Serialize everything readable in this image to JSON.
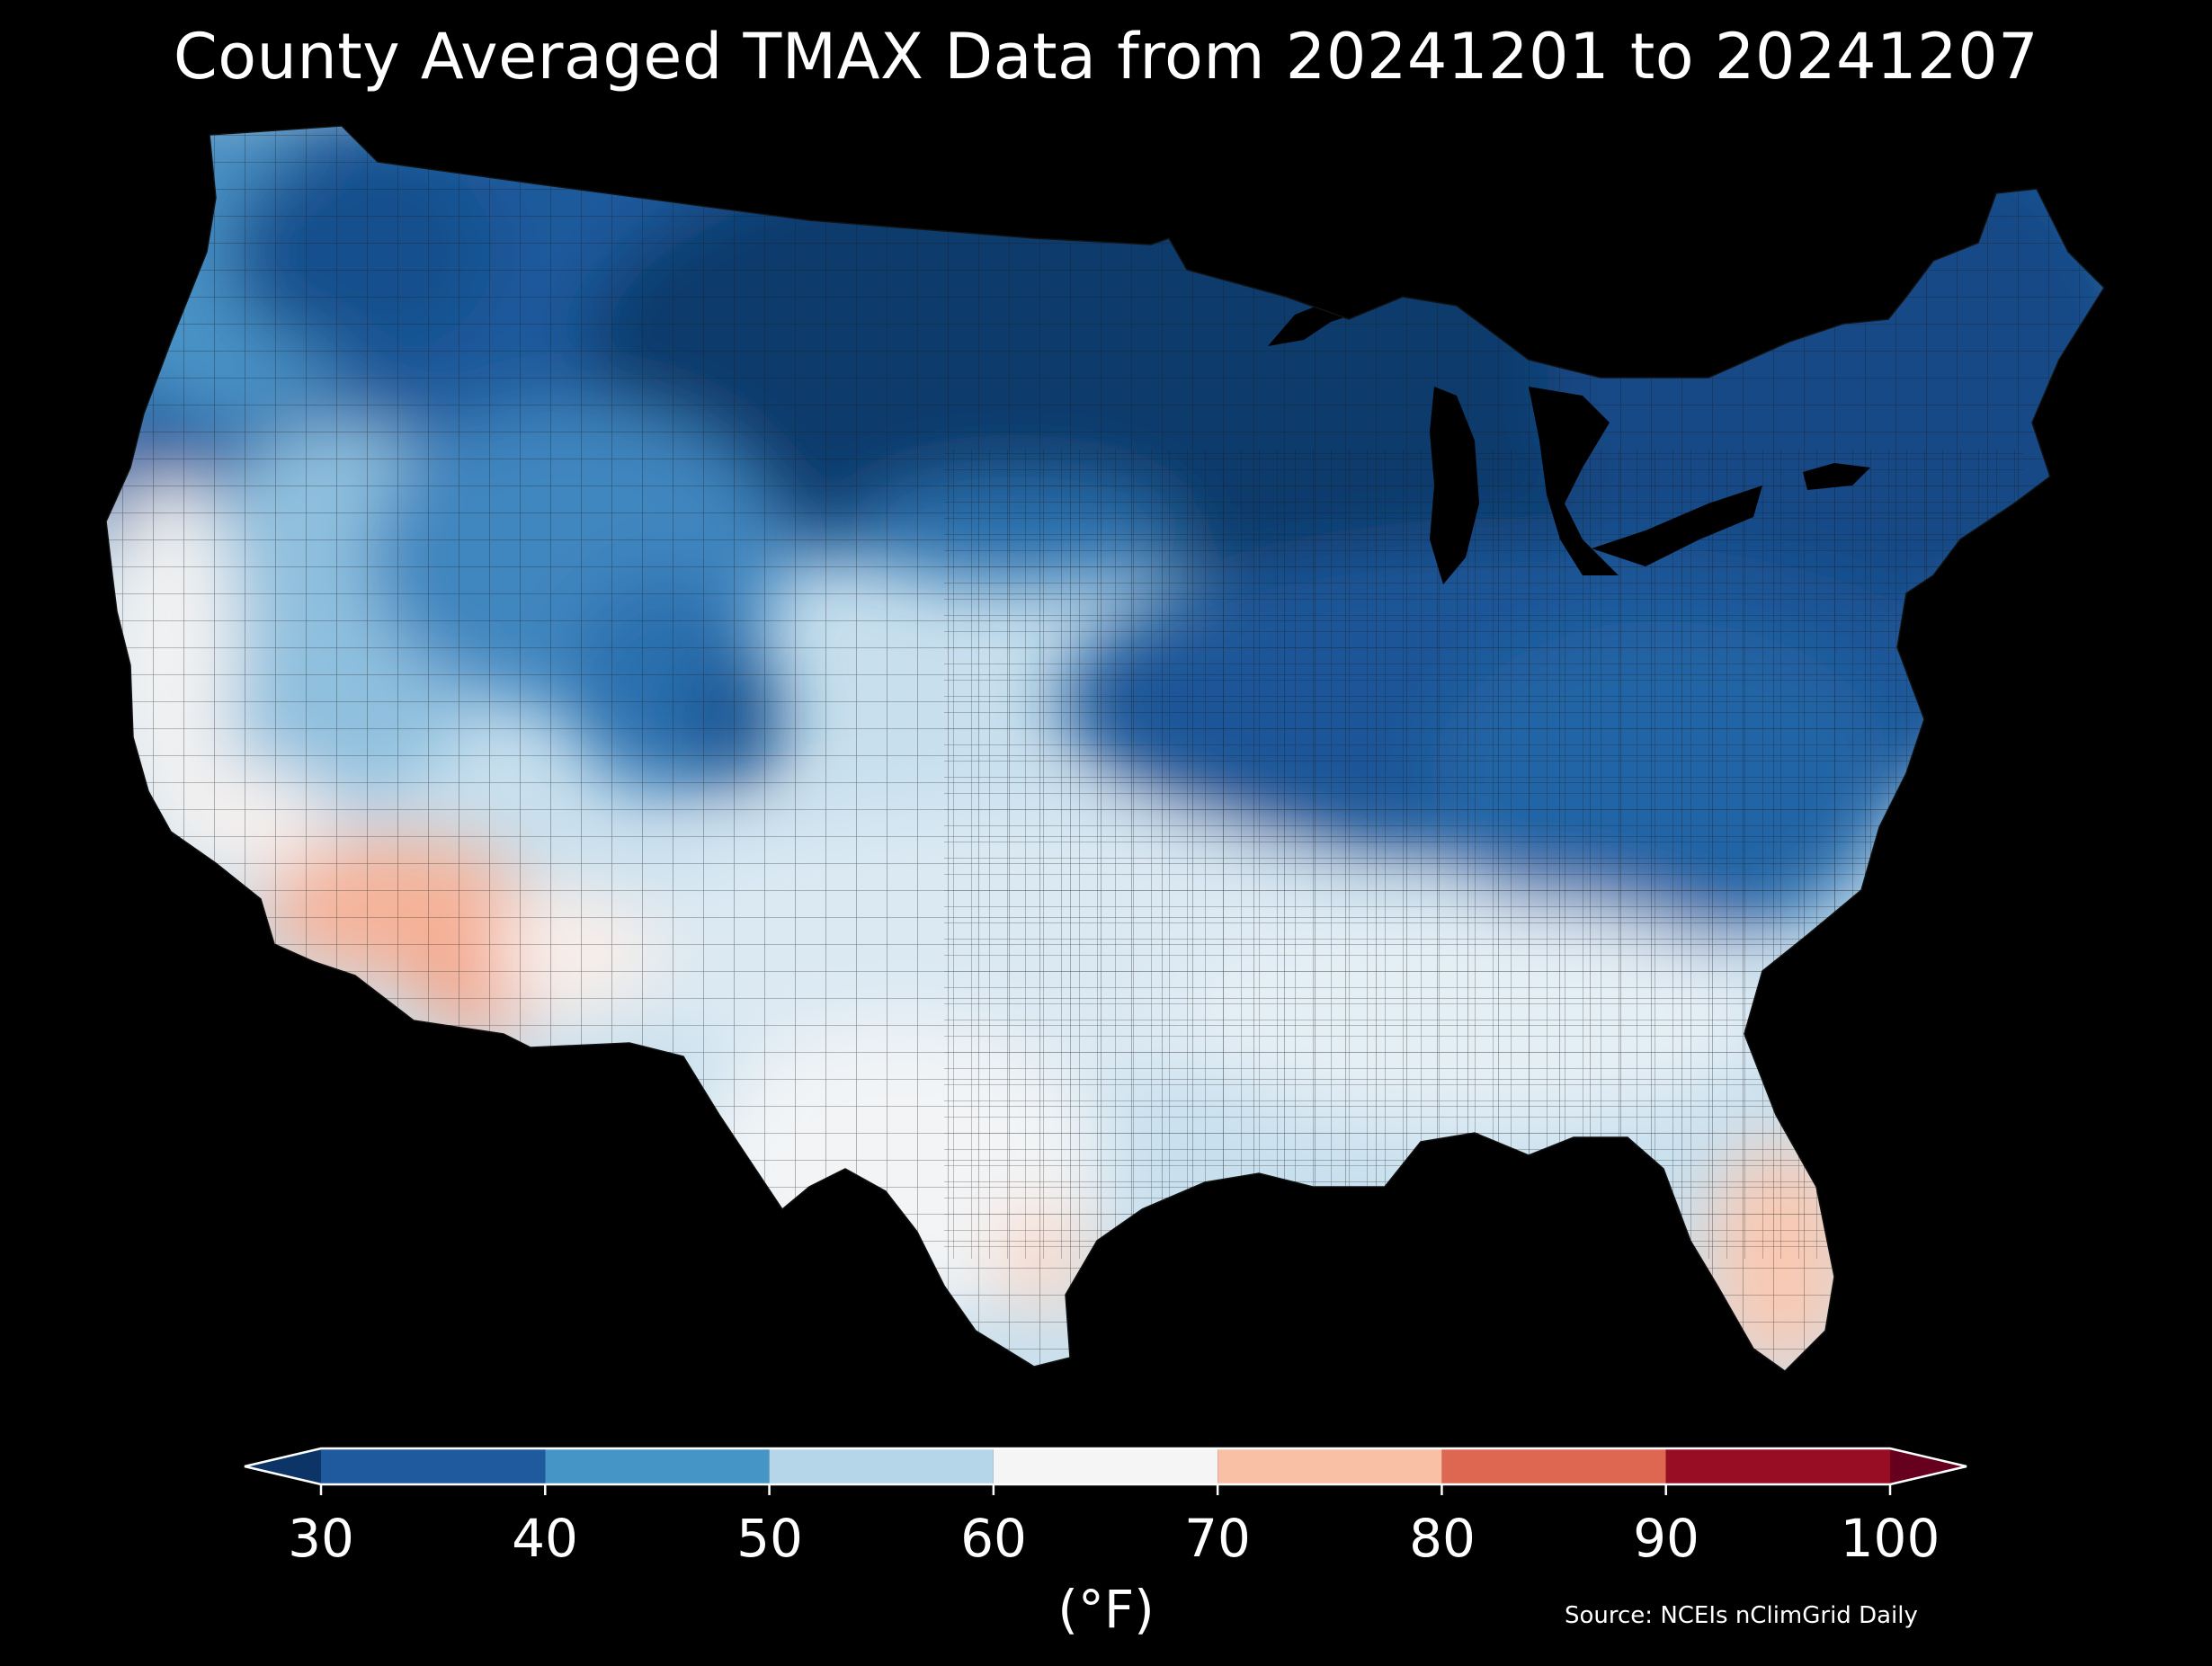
{
  "title": "County Averaged TMAX Data from 20241201 to 20241207",
  "colorbar": {
    "ticks": [
      "30",
      "40",
      "50",
      "60",
      "70",
      "80",
      "90",
      "100"
    ],
    "bins": [
      {
        "range": [
          30,
          40
        ],
        "color": "#1f5a9e"
      },
      {
        "range": [
          40,
          50
        ],
        "color": "#4695c7"
      },
      {
        "range": [
          50,
          60
        ],
        "color": "#b5d6e8"
      },
      {
        "range": [
          60,
          70
        ],
        "color": "#f5f5f5"
      },
      {
        "range": [
          70,
          80
        ],
        "color": "#f9c0a6"
      },
      {
        "range": [
          80,
          90
        ],
        "color": "#dd6751"
      },
      {
        "range": [
          90,
          100
        ],
        "color": "#990d24"
      }
    ],
    "under_color": "#0c3466",
    "over_color": "#67001f",
    "unit": "(°F)",
    "extend": "both"
  },
  "source": "Source: NCEIs nClimGrid Daily",
  "map_regions": {
    "pacific_northwest": "#4a93c6",
    "northern_rockies": "#1e5a9c",
    "northern_plains": "#0e3a6c",
    "great_lakes": "#0f3a6a",
    "northeast": "#164f8e",
    "great_basin": "#7db6da",
    "colorado_rockies": "#2e78b4",
    "southern_plains": "#c8e0ee",
    "texas": "#eef3f7",
    "southeast": "#e2eef6",
    "desert_southwest": "#f6b39a",
    "california_coast": "#f2f2f2",
    "florida": "#fbd3c0",
    "mid_atlantic": "#2a6fad",
    "lakes_water": "#000000"
  }
}
